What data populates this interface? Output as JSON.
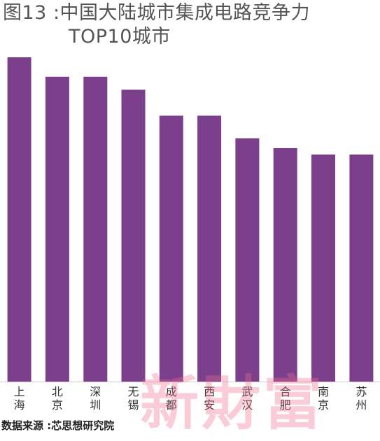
{
  "chart_data": {
    "type": "bar",
    "title_line1": "图13 :中国大陆城市集成电路竞争力",
    "title_line2": "TOP10城市",
    "categories": [
      "上海",
      "北京",
      "深圳",
      "无锡",
      "成都",
      "西安",
      "武汉",
      "合肥",
      "南京",
      "苏州"
    ],
    "values": [
      100,
      94,
      94,
      90,
      82,
      82,
      75,
      72,
      70,
      70
    ],
    "ylim": [
      0,
      100
    ],
    "grid": false,
    "legend": "none",
    "bar_color": "#7B3F8C",
    "axis_color": "#cccccc"
  },
  "source": "数据来源 :芯思想研究院",
  "watermark": "新財富"
}
